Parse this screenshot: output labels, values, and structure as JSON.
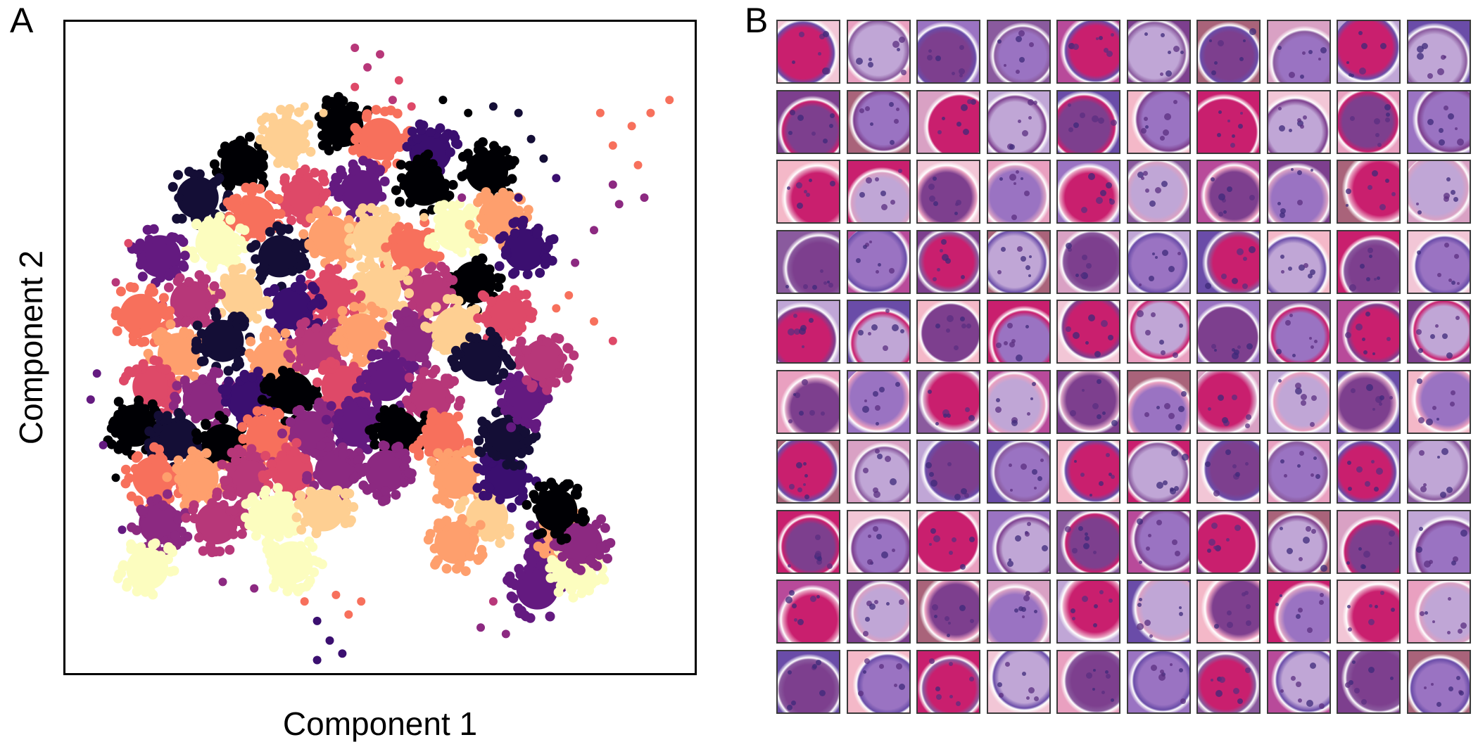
{
  "figure": {
    "panel_a_label": "A",
    "panel_b_label": "B"
  },
  "chart_data": {
    "type": "scatter",
    "title": "",
    "xlabel": "Component 1",
    "ylabel": "Component 2",
    "xlim": [
      0,
      100
    ],
    "ylim": [
      0,
      100
    ],
    "ticks_shown": false,
    "grid": false,
    "legend": "none",
    "colormap": "magma",
    "cluster_colors": [
      "#000004",
      "#140e36",
      "#3b0f70",
      "#641a80",
      "#8c2981",
      "#b73779",
      "#de4968",
      "#f7705c",
      "#fe9f6d",
      "#fecf92",
      "#fcfdbf"
    ],
    "clusters": [
      {
        "x": 44,
        "y": 84,
        "color": 0
      },
      {
        "x": 28,
        "y": 78,
        "color": 0
      },
      {
        "x": 21,
        "y": 73,
        "color": 1
      },
      {
        "x": 35,
        "y": 82,
        "color": 9
      },
      {
        "x": 50,
        "y": 82,
        "color": 7
      },
      {
        "x": 58,
        "y": 80,
        "color": 2
      },
      {
        "x": 67,
        "y": 77,
        "color": 0
      },
      {
        "x": 57,
        "y": 75,
        "color": 0
      },
      {
        "x": 47,
        "y": 74,
        "color": 3
      },
      {
        "x": 38,
        "y": 73,
        "color": 6
      },
      {
        "x": 30,
        "y": 70,
        "color": 7
      },
      {
        "x": 24,
        "y": 66,
        "color": 10
      },
      {
        "x": 15,
        "y": 64,
        "color": 3
      },
      {
        "x": 34,
        "y": 64,
        "color": 1
      },
      {
        "x": 42,
        "y": 67,
        "color": 8
      },
      {
        "x": 49,
        "y": 67,
        "color": 9
      },
      {
        "x": 55,
        "y": 65,
        "color": 7
      },
      {
        "x": 62,
        "y": 68,
        "color": 10
      },
      {
        "x": 69,
        "y": 70,
        "color": 8
      },
      {
        "x": 73,
        "y": 65,
        "color": 2
      },
      {
        "x": 65,
        "y": 60,
        "color": 0
      },
      {
        "x": 58,
        "y": 58,
        "color": 5
      },
      {
        "x": 50,
        "y": 59,
        "color": 9
      },
      {
        "x": 42,
        "y": 58,
        "color": 6
      },
      {
        "x": 36,
        "y": 56,
        "color": 2
      },
      {
        "x": 28,
        "y": 58,
        "color": 9
      },
      {
        "x": 20,
        "y": 57,
        "color": 5
      },
      {
        "x": 12,
        "y": 55,
        "color": 7
      },
      {
        "x": 18,
        "y": 49,
        "color": 8
      },
      {
        "x": 25,
        "y": 51,
        "color": 1
      },
      {
        "x": 33,
        "y": 48,
        "color": 8
      },
      {
        "x": 40,
        "y": 50,
        "color": 5
      },
      {
        "x": 47,
        "y": 52,
        "color": 8
      },
      {
        "x": 55,
        "y": 51,
        "color": 4
      },
      {
        "x": 62,
        "y": 53,
        "color": 9
      },
      {
        "x": 70,
        "y": 55,
        "color": 6
      },
      {
        "x": 14,
        "y": 44,
        "color": 6
      },
      {
        "x": 22,
        "y": 42,
        "color": 4
      },
      {
        "x": 29,
        "y": 42,
        "color": 2
      },
      {
        "x": 36,
        "y": 43,
        "color": 0
      },
      {
        "x": 44,
        "y": 44,
        "color": 6
      },
      {
        "x": 51,
        "y": 45,
        "color": 3
      },
      {
        "x": 58,
        "y": 42,
        "color": 5
      },
      {
        "x": 11,
        "y": 38,
        "color": 0
      },
      {
        "x": 18,
        "y": 36,
        "color": 1
      },
      {
        "x": 25,
        "y": 35,
        "color": 0
      },
      {
        "x": 32,
        "y": 36,
        "color": 7
      },
      {
        "x": 39,
        "y": 37,
        "color": 4
      },
      {
        "x": 46,
        "y": 38,
        "color": 3
      },
      {
        "x": 53,
        "y": 37,
        "color": 0
      },
      {
        "x": 60,
        "y": 36,
        "color": 7
      },
      {
        "x": 14,
        "y": 30,
        "color": 7
      },
      {
        "x": 21,
        "y": 30,
        "color": 8
      },
      {
        "x": 29,
        "y": 30,
        "color": 5
      },
      {
        "x": 36,
        "y": 31,
        "color": 6
      },
      {
        "x": 43,
        "y": 31,
        "color": 4
      },
      {
        "x": 51,
        "y": 31,
        "color": 4
      },
      {
        "x": 15,
        "y": 23,
        "color": 4
      },
      {
        "x": 24,
        "y": 23,
        "color": 5
      },
      {
        "x": 33,
        "y": 24,
        "color": 10
      },
      {
        "x": 41,
        "y": 25,
        "color": 9
      },
      {
        "x": 13,
        "y": 16,
        "color": 10
      },
      {
        "x": 36,
        "y": 17,
        "color": 10
      },
      {
        "x": 62,
        "y": 30,
        "color": 8
      },
      {
        "x": 67,
        "y": 24,
        "color": 9
      },
      {
        "x": 62,
        "y": 20,
        "color": 8
      },
      {
        "x": 70,
        "y": 30,
        "color": 2
      },
      {
        "x": 70,
        "y": 36,
        "color": 1
      },
      {
        "x": 73,
        "y": 42,
        "color": 3
      },
      {
        "x": 77,
        "y": 19,
        "color": 3
      },
      {
        "x": 75,
        "y": 13,
        "color": 3
      },
      {
        "x": 79,
        "y": 22,
        "color": 8
      },
      {
        "x": 81,
        "y": 16,
        "color": 10
      },
      {
        "x": 82,
        "y": 20,
        "color": 4
      },
      {
        "x": 78,
        "y": 25,
        "color": 0
      },
      {
        "x": 76,
        "y": 48,
        "color": 5
      },
      {
        "x": 66,
        "y": 48,
        "color": 1
      }
    ],
    "outlier_points": [
      {
        "x": 46,
        "y": 96,
        "color": 5
      },
      {
        "x": 48,
        "y": 93,
        "color": 5
      },
      {
        "x": 50,
        "y": 95,
        "color": 5
      },
      {
        "x": 46,
        "y": 90,
        "color": 6
      },
      {
        "x": 53,
        "y": 91,
        "color": 6
      },
      {
        "x": 55,
        "y": 87,
        "color": 6
      },
      {
        "x": 52,
        "y": 88,
        "color": 5
      },
      {
        "x": 60,
        "y": 88,
        "color": 0
      },
      {
        "x": 64,
        "y": 86,
        "color": 0
      },
      {
        "x": 68,
        "y": 87,
        "color": 1
      },
      {
        "x": 72,
        "y": 86,
        "color": 1
      },
      {
        "x": 74,
        "y": 82,
        "color": 1
      },
      {
        "x": 76,
        "y": 79,
        "color": 1
      },
      {
        "x": 72,
        "y": 73,
        "color": 2
      },
      {
        "x": 78,
        "y": 76,
        "color": 2
      },
      {
        "x": 85,
        "y": 86,
        "color": 7
      },
      {
        "x": 87,
        "y": 81,
        "color": 7
      },
      {
        "x": 90,
        "y": 84,
        "color": 7
      },
      {
        "x": 93,
        "y": 86,
        "color": 7
      },
      {
        "x": 96,
        "y": 88,
        "color": 7
      },
      {
        "x": 91,
        "y": 78,
        "color": 7
      },
      {
        "x": 87,
        "y": 75,
        "color": 4
      },
      {
        "x": 88,
        "y": 72,
        "color": 4
      },
      {
        "x": 92,
        "y": 73,
        "color": 4
      },
      {
        "x": 84,
        "y": 68,
        "color": 4
      },
      {
        "x": 81,
        "y": 63,
        "color": 4
      },
      {
        "x": 80,
        "y": 58,
        "color": 7
      },
      {
        "x": 78,
        "y": 56,
        "color": 7
      },
      {
        "x": 84,
        "y": 54,
        "color": 7
      },
      {
        "x": 87,
        "y": 51,
        "color": 6
      },
      {
        "x": 4,
        "y": 42,
        "color": 3
      },
      {
        "x": 5,
        "y": 46,
        "color": 3
      },
      {
        "x": 6,
        "y": 35,
        "color": 3
      },
      {
        "x": 8,
        "y": 30,
        "color": 0
      },
      {
        "x": 38,
        "y": 87,
        "color": 9
      },
      {
        "x": 41,
        "y": 86,
        "color": 9
      },
      {
        "x": 43,
        "y": 12,
        "color": 7
      },
      {
        "x": 45,
        "y": 9,
        "color": 7
      },
      {
        "x": 47,
        "y": 11,
        "color": 7
      },
      {
        "x": 40,
        "y": 8,
        "color": 2
      },
      {
        "x": 42,
        "y": 5,
        "color": 2
      },
      {
        "x": 44,
        "y": 3,
        "color": 2
      },
      {
        "x": 40,
        "y": 2,
        "color": 2
      },
      {
        "x": 38,
        "y": 11,
        "color": 7
      },
      {
        "x": 30,
        "y": 13,
        "color": 4
      },
      {
        "x": 25,
        "y": 14,
        "color": 4
      },
      {
        "x": 9,
        "y": 22,
        "color": 3
      },
      {
        "x": 66,
        "y": 7,
        "color": 4
      },
      {
        "x": 70,
        "y": 6,
        "color": 4
      },
      {
        "x": 68,
        "y": 11,
        "color": 5
      },
      {
        "x": 57,
        "y": 70,
        "color": 9
      },
      {
        "x": 63,
        "y": 73,
        "color": 4
      },
      {
        "x": 8,
        "y": 60,
        "color": 5
      },
      {
        "x": 10,
        "y": 66,
        "color": 6
      }
    ]
  },
  "mosaic": {
    "rows": 10,
    "cols": 10,
    "tile_count": 100,
    "stain_palette": [
      "#f2c6d6",
      "#d9a1c4",
      "#9a73c2",
      "#6a4ca8",
      "#b84a9a",
      "#c91f6e",
      "#a9637a",
      "#e9a0c0",
      "#c0a6d6",
      "#8a5a9e",
      "#f4b8c8",
      "#7d3f8e"
    ]
  }
}
